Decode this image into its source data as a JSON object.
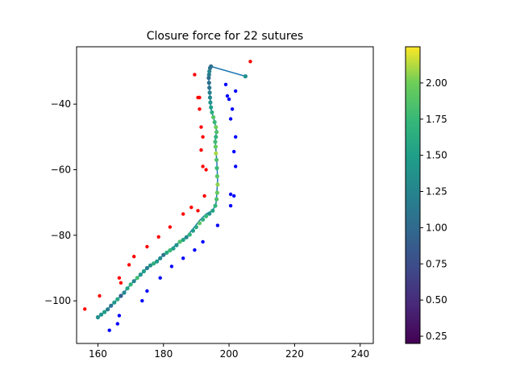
{
  "chart_data": {
    "type": "scatter",
    "title": "Closure force for 22 sutures",
    "xlabel": "",
    "ylabel": "",
    "xlim": [
      153.5,
      244
    ],
    "ylim": [
      -113,
      -22.5
    ],
    "xticks": [
      160,
      180,
      200,
      220,
      240
    ],
    "yticks": [
      -100,
      -80,
      -60,
      -40
    ],
    "grid": false,
    "colorbar": {
      "colormap": "viridis",
      "range": [
        0.2,
        2.25
      ],
      "ticks": [
        0.25,
        0.5,
        0.75,
        1.0,
        1.25,
        1.5,
        1.75,
        2.0
      ]
    },
    "series": [
      {
        "kind": "line",
        "color": "#1f77b4",
        "x": [
          160.0,
          162.5,
          165.0,
          167.5,
          170.0,
          172.5,
          175.0,
          178.0,
          180.0,
          182.5,
          185.0,
          187.0,
          189.0,
          191.0,
          193.0,
          195.0,
          196.0,
          196.3,
          196.5,
          196.3,
          196.0,
          195.8,
          196.2,
          195.5,
          194.5,
          194.2,
          194.0,
          193.8,
          194.0,
          194.5,
          205.0
        ],
        "y": [
          -105.0,
          -103.0,
          -100.5,
          -98.0,
          -95.0,
          -92.5,
          -90.0,
          -88.0,
          -86.0,
          -84.0,
          -82.0,
          -80.5,
          -78.0,
          -75.5,
          -73.5,
          -72.5,
          -70.5,
          -67.0,
          -63.0,
          -58.0,
          -54.0,
          -51.0,
          -48.0,
          -45.0,
          -41.5,
          -38.0,
          -35.0,
          -32.0,
          -30.0,
          -28.5,
          -31.5
        ]
      },
      {
        "kind": "colored-points",
        "colormap": "viridis",
        "x": [
          160.0,
          161.0,
          162.0,
          163.0,
          164.0,
          165.0,
          166.0,
          167.0,
          168.0,
          169.0,
          170.0,
          171.0,
          172.0,
          173.0,
          174.0,
          175.0,
          176.0,
          177.0,
          178.0,
          179.0,
          180.0,
          181.0,
          182.0,
          183.0,
          184.0,
          185.0,
          186.0,
          187.0,
          188.0,
          189.0,
          190.0,
          191.0,
          192.0,
          193.0,
          194.0,
          195.0,
          195.8,
          196.2,
          196.4,
          196.5,
          196.4,
          196.3,
          196.2,
          196.0,
          195.9,
          195.8,
          196.0,
          196.2,
          196.0,
          195.6,
          195.2,
          194.8,
          194.5,
          194.3,
          194.2,
          194.1,
          194.0,
          193.9,
          193.8,
          193.9,
          194.0,
          194.2,
          194.5,
          205.0
        ],
        "y": [
          -105.0,
          -104.2,
          -103.4,
          -102.6,
          -101.5,
          -100.5,
          -99.5,
          -98.5,
          -97.5,
          -96.2,
          -95.0,
          -94.0,
          -93.0,
          -92.0,
          -91.0,
          -90.0,
          -89.2,
          -88.6,
          -88.0,
          -87.0,
          -86.0,
          -85.3,
          -84.6,
          -84.0,
          -83.0,
          -82.0,
          -81.4,
          -80.6,
          -79.8,
          -78.6,
          -77.5,
          -76.3,
          -75.2,
          -74.2,
          -73.4,
          -72.5,
          -71.0,
          -69.0,
          -67.0,
          -64.5,
          -62.0,
          -59.5,
          -57.0,
          -55.0,
          -53.0,
          -51.5,
          -50.0,
          -48.5,
          -47.0,
          -45.5,
          -44.0,
          -42.5,
          -41.0,
          -39.5,
          -38.0,
          -36.5,
          -35.0,
          -33.5,
          -32.0,
          -31.0,
          -30.0,
          -29.0,
          -28.5,
          -31.5
        ],
        "values": [
          1.35,
          1.4,
          1.5,
          1.2,
          1.1,
          1.45,
          1.6,
          0.9,
          1.3,
          1.55,
          1.7,
          1.25,
          1.8,
          1.4,
          1.5,
          1.2,
          1.35,
          1.65,
          1.45,
          1.3,
          1.1,
          1.6,
          1.75,
          1.5,
          1.4,
          1.85,
          1.55,
          1.3,
          1.7,
          1.45,
          1.6,
          1.9,
          1.65,
          1.75,
          1.4,
          1.55,
          1.7,
          1.85,
          1.95,
          2.05,
          1.9,
          1.75,
          1.85,
          2.1,
          1.95,
          1.8,
          1.7,
          1.85,
          2.0,
          1.75,
          1.9,
          1.65,
          1.5,
          1.4,
          1.3,
          1.2,
          1.1,
          1.05,
          1.0,
          1.15,
          1.25,
          1.1,
          1.05,
          1.35
        ]
      },
      {
        "kind": "points",
        "color": "#ff0000",
        "x": [
          156.0,
          160.5,
          166.5,
          167.0,
          169.5,
          171.0,
          175.0,
          178.5,
          182.0,
          186.0,
          188.5,
          190.5,
          191.0,
          191.5,
          192.0,
          191.5,
          192.0,
          192.5,
          193.0,
          191.0,
          190.5,
          189.5,
          206.5
        ],
        "y": [
          -102.5,
          -98.5,
          -93.0,
          -94.5,
          -89.0,
          -86.5,
          -83.5,
          -80.5,
          -77.5,
          -73.5,
          -71.5,
          -72.5,
          -41.5,
          -47.0,
          -50.0,
          -54.0,
          -59.0,
          -68.0,
          -60.0,
          -38.0,
          -38.0,
          -31.0,
          -27.0
        ]
      },
      {
        "kind": "points",
        "color": "#0000ff",
        "x": [
          163.5,
          166.0,
          166.5,
          173.5,
          175.0,
          179.0,
          182.5,
          186.0,
          189.5,
          192.0,
          196.5,
          200.5,
          201.5,
          200.5,
          202.0,
          201.5,
          202.0,
          200.5,
          201.0,
          200.0,
          199.5,
          202.0,
          199.0
        ],
        "y": [
          -109.0,
          -107.0,
          -104.5,
          -100.0,
          -97.0,
          -93.0,
          -89.5,
          -87.0,
          -84.5,
          -82.0,
          -77.0,
          -71.0,
          -68.0,
          -67.5,
          -59.0,
          -54.5,
          -50.0,
          -44.5,
          -41.5,
          -38.5,
          -37.5,
          -36.0,
          -34.0
        ]
      }
    ]
  }
}
